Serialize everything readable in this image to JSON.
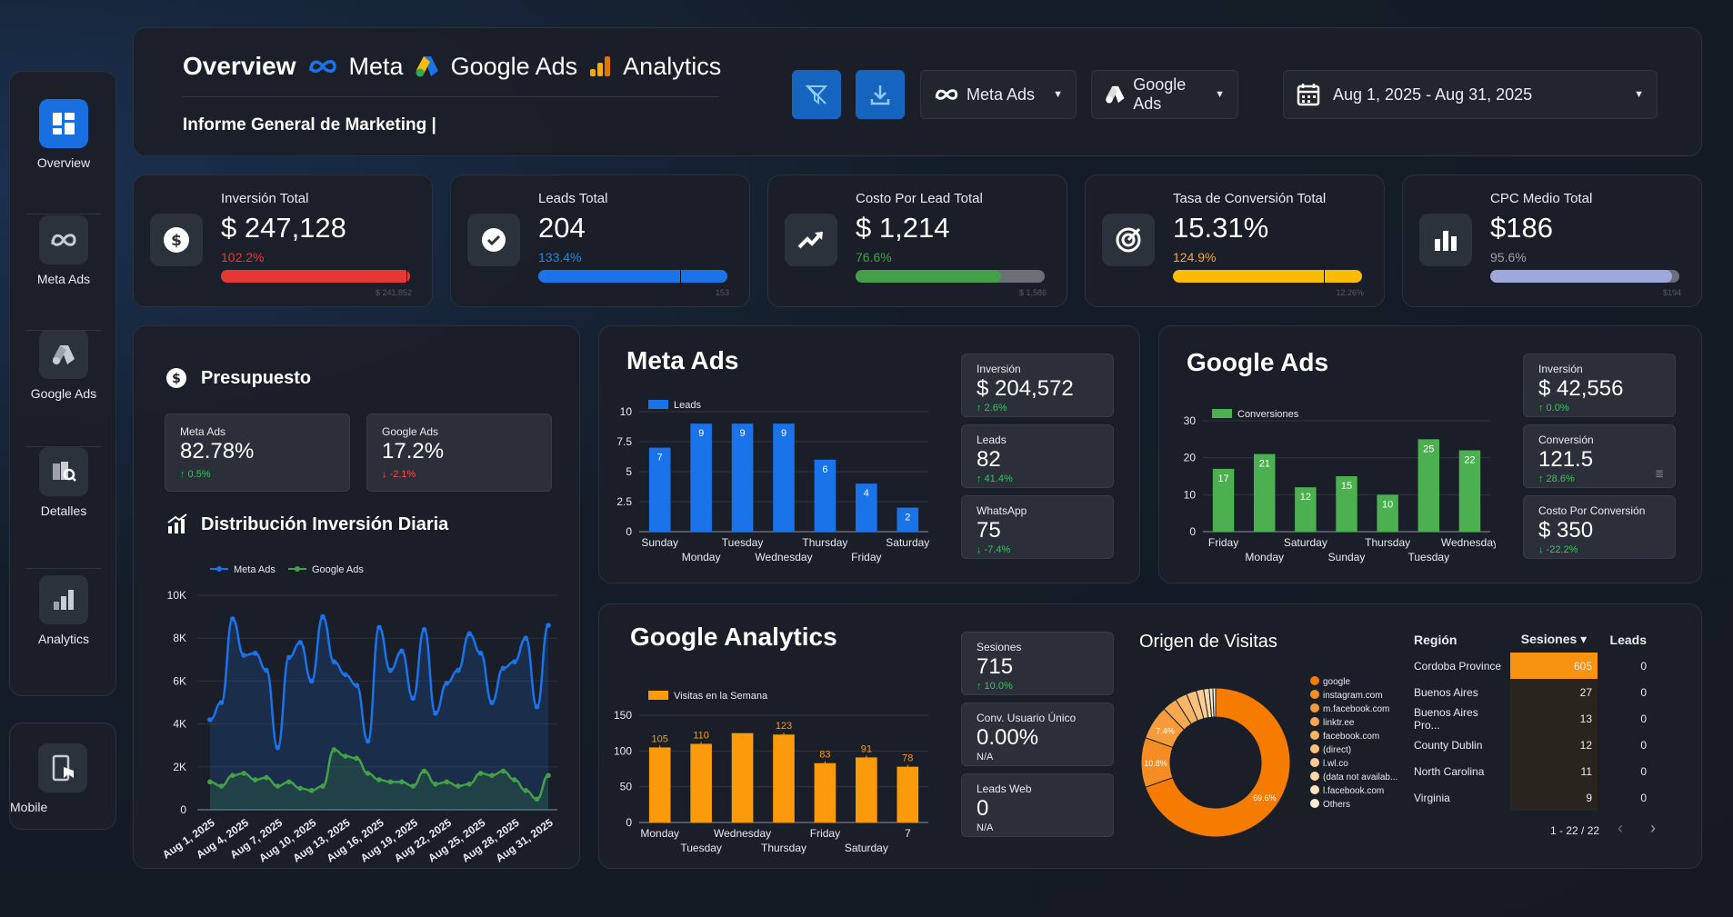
{
  "header": {
    "title": "Overview",
    "brand_meta": "Meta",
    "brand_google_ads": "Google Ads",
    "brand_analytics": "Analytics",
    "subtitle": "Informe General de Marketing |",
    "filter_meta": "Meta Ads",
    "filter_google": "Google Ads",
    "date_range": "Aug 1, 2025 - Aug 31, 2025"
  },
  "sidebar": {
    "items": [
      {
        "label": "Overview",
        "icon": "grid-icon"
      },
      {
        "label": "Meta Ads",
        "icon": "meta-icon"
      },
      {
        "label": "Google Ads",
        "icon": "google-ads-icon"
      },
      {
        "label": "Detalles",
        "icon": "details-icon"
      },
      {
        "label": "Analytics",
        "icon": "analytics-icon"
      }
    ],
    "mobile_label": "Mobile"
  },
  "kpis": [
    {
      "title": "Inversión Total",
      "value": "$ 247,128",
      "delta": "102.2%",
      "delta_color": "#e53935",
      "bar_color": "#e53935",
      "progress": 1.0,
      "target_label": "$ 241,852",
      "tick": 0.98
    },
    {
      "title": "Leads Total",
      "value": "204",
      "delta": "133.4%",
      "delta_color": "#1e88e5",
      "bar_color": "#1a73e8",
      "progress": 1.0,
      "target_label": "153",
      "tick": 0.75
    },
    {
      "title": "Costo Por Lead Total",
      "value": "$ 1,214",
      "delta": "76.6%",
      "delta_color": "#43a047",
      "bar_color": "#43a047",
      "progress": 0.77,
      "target_label": "$ 1,586",
      "tick": null
    },
    {
      "title": "Tasa de Conversión Total",
      "value": "15.31%",
      "delta": "124.9%",
      "delta_color": "#f9a825",
      "bar_color": "#fbbc05",
      "progress": 1.0,
      "target_label": "12.26%",
      "tick": 0.8
    },
    {
      "title": "CPC Medio Total",
      "value": "$186",
      "delta": "95.6%",
      "delta_color": "#9aa0ad",
      "bar_color": "#9fa8da",
      "progress": 0.96,
      "target_label": "$194",
      "tick": null
    }
  ],
  "budget": {
    "title": "Presupuesto",
    "meta_label": "Meta Ads",
    "meta_value": "82.78%",
    "meta_delta": "↑ 0.5%",
    "google_label": "Google Ads",
    "google_value": "17.2%",
    "google_delta": "↓ -2.1%"
  },
  "daily": {
    "title": "Distribución Inversión Diaria",
    "chart_data": {
      "type": "line",
      "series": [
        {
          "name": "Meta Ads",
          "color": "#1a73e8",
          "values": [
            4200,
            5000,
            8900,
            7200,
            7300,
            6500,
            2900,
            7100,
            7800,
            6000,
            9000,
            6900,
            6300,
            5800,
            3200,
            8500,
            6500,
            7400,
            5200,
            8400,
            4500,
            5900,
            6500,
            8200,
            7300,
            5000,
            6600,
            6900,
            8000,
            4800,
            8600
          ]
        },
        {
          "name": "Google Ads",
          "color": "#43a047",
          "values": [
            1300,
            1100,
            1600,
            1700,
            1400,
            1500,
            1100,
            1300,
            1000,
            900,
            1100,
            2800,
            2500,
            2400,
            1700,
            1400,
            1300,
            1300,
            1100,
            1800,
            1200,
            1300,
            1100,
            1200,
            1700,
            1600,
            1800,
            1400,
            900,
            500,
            1600
          ]
        }
      ],
      "x_ticks": [
        "Aug 1, 2025",
        "Aug 4, 2025",
        "Aug 7, 2025",
        "Aug 10, 2025",
        "Aug 13, 2025",
        "Aug 16, 2025",
        "Aug 19, 2025",
        "Aug 22, 2025",
        "Aug 25, 2025",
        "Aug 28, 2025",
        "Aug 31, 2025"
      ],
      "y_ticks": [
        "0",
        "2K",
        "4K",
        "6K",
        "8K",
        "10K"
      ],
      "ylim": [
        0,
        10000
      ]
    }
  },
  "meta": {
    "title": "Meta Ads",
    "stats": [
      {
        "label": "Inversión",
        "value": "$ 204,572",
        "delta": "↑ 2.6%",
        "delta_color": "#34c759"
      },
      {
        "label": "Leads",
        "value": "82",
        "delta": "↑ 41.4%",
        "delta_color": "#34c759"
      },
      {
        "label": "WhatsApp",
        "value": "75",
        "delta": "↓ -7.4%",
        "delta_color": "#34c759"
      }
    ],
    "chart_data": {
      "type": "bar",
      "series": [
        {
          "name": "Leads",
          "color": "#1a73e8",
          "values": [
            7,
            9,
            9,
            9,
            6,
            4,
            2
          ]
        }
      ],
      "categories": [
        "Sunday",
        "Monday",
        "Tuesday",
        "Wednesday",
        "Thursday",
        "Friday",
        "Saturday"
      ],
      "y_ticks": [
        "0",
        "2.5",
        "5",
        "7.5",
        "10"
      ],
      "ylim": [
        0,
        10
      ]
    }
  },
  "google": {
    "title": "Google Ads",
    "stats": [
      {
        "label": "Inversión",
        "value": "$ 42,556",
        "delta": "↑ 0.0%",
        "delta_color": "#34c759"
      },
      {
        "label": "Conversión",
        "value": "121.5",
        "delta": "↑ 28.6%",
        "delta_color": "#34c759"
      },
      {
        "label": "Costo Por Conversión",
        "value": "$ 350",
        "delta": "↓ -22.2%",
        "delta_color": "#34c759"
      }
    ],
    "chart_data": {
      "type": "bar",
      "series": [
        {
          "name": "Conversiones",
          "color": "#4caf50",
          "values": [
            17,
            21,
            12,
            15,
            10,
            25,
            22
          ]
        }
      ],
      "categories": [
        "Friday",
        "Monday",
        "Saturday",
        "Sunday",
        "Thursday",
        "Tuesday",
        "Wednesday"
      ],
      "y_ticks": [
        "0",
        "10",
        "20",
        "30"
      ],
      "ylim": [
        0,
        30
      ]
    }
  },
  "analytics": {
    "title": "Google Analytics",
    "stats": [
      {
        "label": "Sesiones",
        "value": "715",
        "delta": "↑ 10.0%",
        "delta_color": "#34c759"
      },
      {
        "label": "Conv. Usuario Único",
        "value": "0.00%",
        "delta": "N/A",
        "delta_color": "#e8eaef"
      },
      {
        "label": "Leads Web",
        "value": "0",
        "delta": "N/A",
        "delta_color": "#e8eaef"
      }
    ],
    "chart_data": {
      "type": "bar",
      "series": [
        {
          "name": "Visitas en la Semana",
          "color": "#fb9b0c",
          "values": [
            105,
            110,
            125,
            123,
            83,
            91,
            78
          ]
        }
      ],
      "categories": [
        "Monday",
        "Tuesday",
        "Wednesday",
        "Thursday",
        "Friday",
        "Saturday",
        "7"
      ],
      "labels": [
        "105",
        "110",
        "",
        "123",
        "83",
        "91",
        "78"
      ],
      "y_ticks": [
        "0",
        "50",
        "100",
        "150"
      ],
      "ylim": [
        0,
        150
      ]
    },
    "pie": {
      "title": "Origen de Visitas",
      "chart_data": {
        "type": "pie",
        "categories": [
          "google",
          "instagram.com",
          "m.facebook.com",
          "linktr.ee",
          "facebook.com",
          "(direct)",
          "l.wl.co",
          "(data not availab...",
          "l.facebook.com",
          "Others"
        ],
        "values": [
          69.6,
          10.8,
          7.4,
          3.2,
          2.6,
          2.2,
          1.6,
          1.2,
          0.8,
          0.6
        ],
        "colors": [
          "#f57c00",
          "#f68c24",
          "#f79a3a",
          "#f8a851",
          "#f9b567",
          "#fac17d",
          "#fbcc93",
          "#fcd8a9",
          "#fde3bf",
          "#fdeed6"
        ],
        "labels": [
          "69.6%",
          "10.8%",
          "7.4%"
        ]
      }
    },
    "table": {
      "headers": [
        "Región",
        "Sesiones ▾",
        "Leads"
      ],
      "rows": [
        {
          "region": "Cordoba Province",
          "sessions": "605",
          "leads": "0",
          "fill": 1.0
        },
        {
          "region": "Buenos Aires",
          "sessions": "27",
          "leads": "0",
          "fill": 0.05
        },
        {
          "region": "Buenos Aires Pro...",
          "sessions": "13",
          "leads": "0",
          "fill": 0.03
        },
        {
          "region": "County Dublin",
          "sessions": "12",
          "leads": "0",
          "fill": 0.03
        },
        {
          "region": "North Carolina",
          "sessions": "11",
          "leads": "0",
          "fill": 0.02
        },
        {
          "region": "Virginia",
          "sessions": "9",
          "leads": "0",
          "fill": 0.02
        }
      ],
      "pagination": "1 - 22 / 22"
    }
  }
}
